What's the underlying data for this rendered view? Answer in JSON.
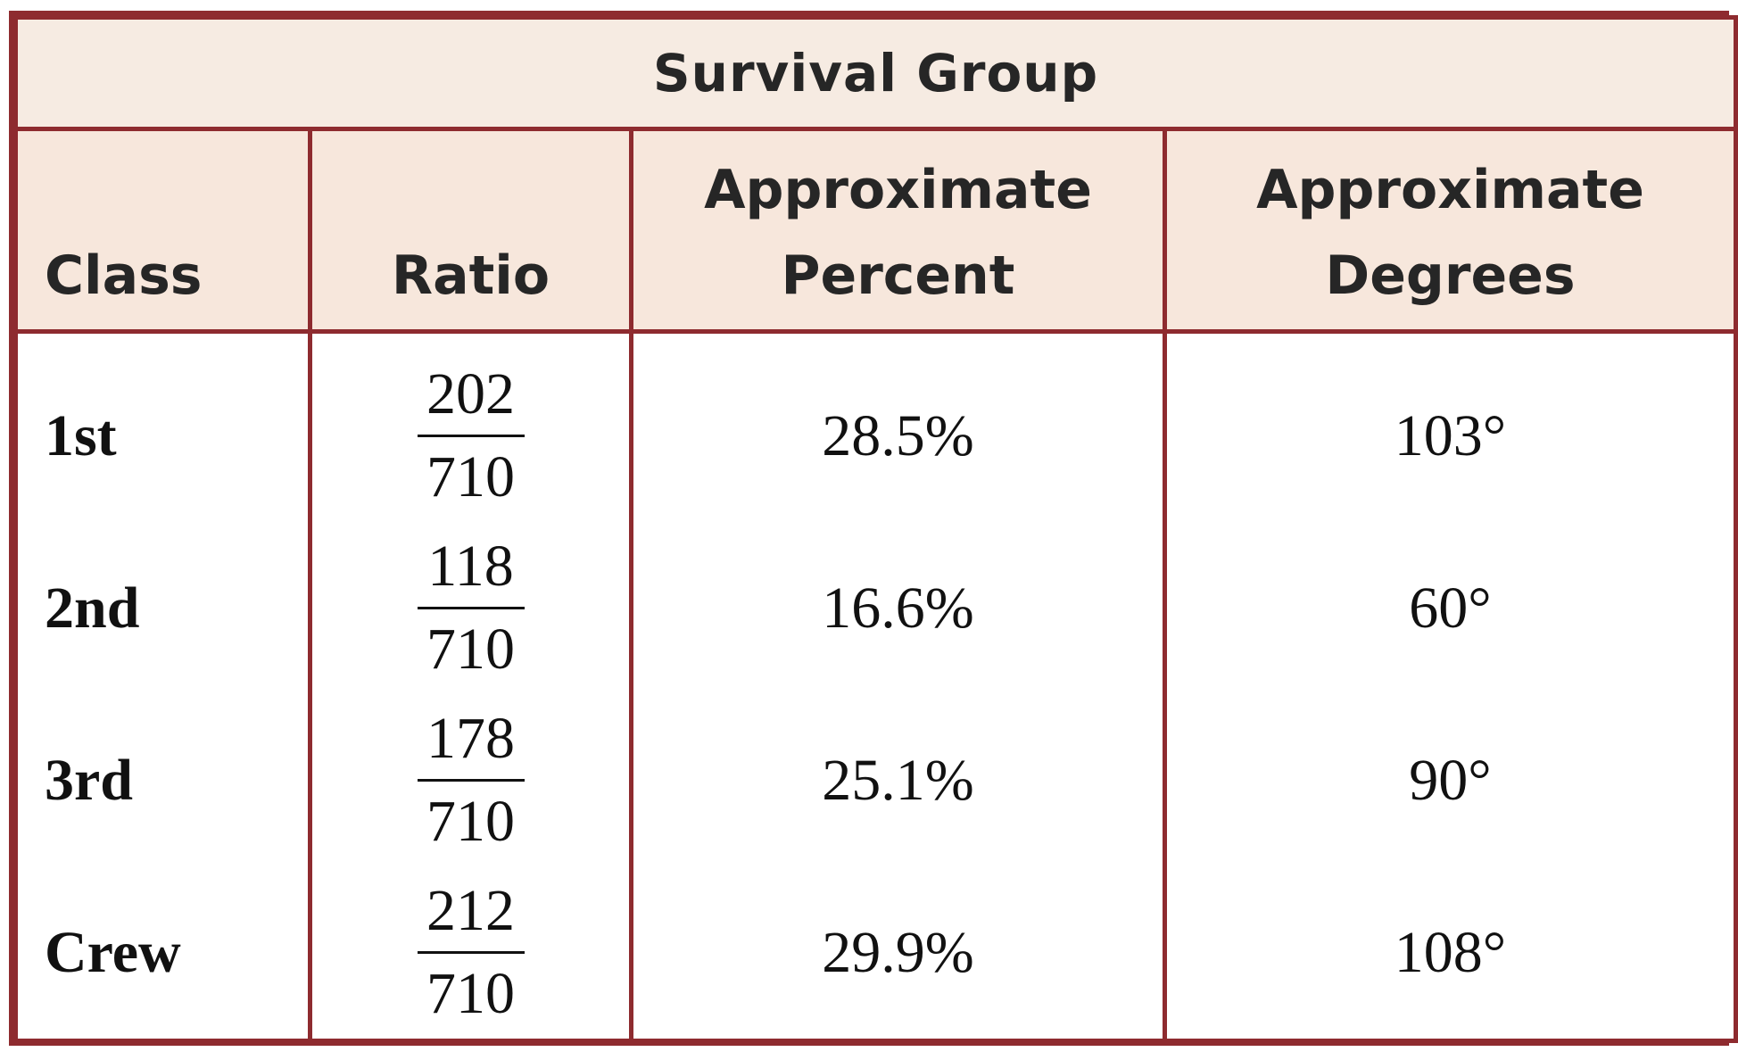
{
  "title": "Survival Group",
  "headers": {
    "class": "Class",
    "ratio": "Ratio",
    "percent_line1": "Approximate",
    "percent_line2": "Percent",
    "degrees_line1": "Approximate",
    "degrees_line2": "Degrees"
  },
  "rows": [
    {
      "class": "1st",
      "numerator": "202",
      "denominator": "710",
      "percent": "28.5%",
      "degrees": "103°"
    },
    {
      "class": "2nd",
      "numerator": "118",
      "denominator": "710",
      "percent": "16.6%",
      "degrees": "60°"
    },
    {
      "class": "3rd",
      "numerator": "178",
      "denominator": "710",
      "percent": "25.1%",
      "degrees": "90°"
    },
    {
      "class": "Crew",
      "numerator": "212",
      "denominator": "710",
      "percent": "29.9%",
      "degrees": "108°"
    }
  ],
  "colors": {
    "border": "#8e2b2f",
    "header_bg": "#f7e7dc"
  }
}
